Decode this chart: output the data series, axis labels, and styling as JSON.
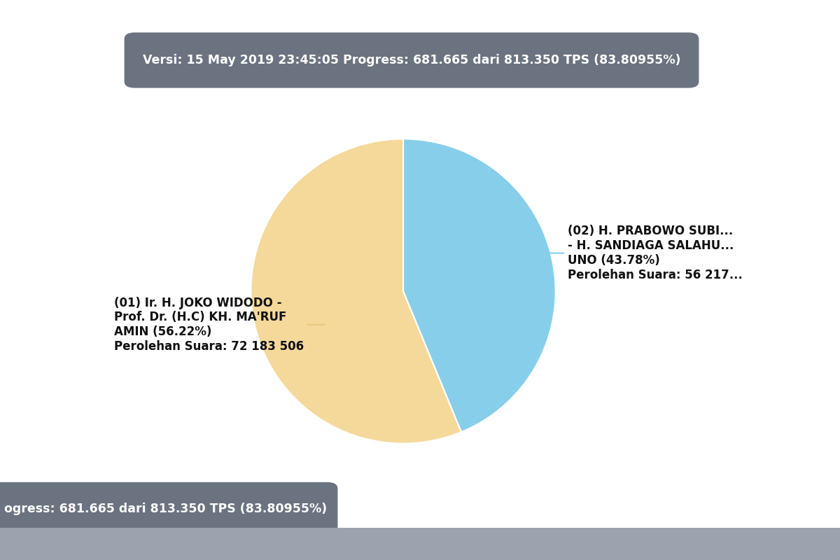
{
  "title_bar_text": "Versi: 15 May 2019 23:45:05 Progress: 681.665 dari 813.350 TPS (83.80955%)",
  "bottom_bar_full": "ogress: 681.665 dari 813.350 TPS (83.80955%)",
  "slices": [
    43.78,
    56.22
  ],
  "colors": [
    "#87ceeb",
    "#f5d99b"
  ],
  "label1_line1": "(01) Ir. H. JOKO WIDODO -",
  "label1_line2": "Prof. Dr. (H.C) KH. MA'RUF",
  "label1_line3": "AMIN (56.22%)",
  "label1_line4": "Perolehan Suara: 72 183 506",
  "label2_line1": "(02) H. PRABOWO SUBI...",
  "label2_line2": "- H. SANDIAGA SALAHU...",
  "label2_line3": "UNO (43.78%)",
  "label2_line4": "Perolehan Suara: 56 217...",
  "bar_bg_color": "#6b7280",
  "bar_text_color": "#ffffff",
  "background_color": "#ffffff",
  "startangle": 90
}
